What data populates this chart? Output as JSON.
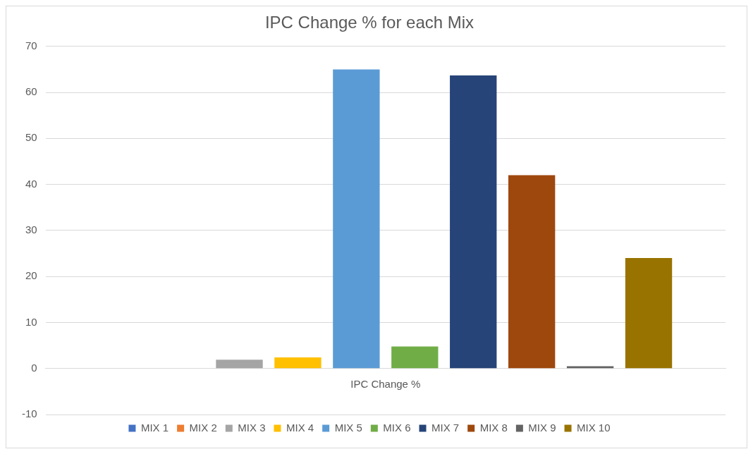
{
  "chart_data": {
    "type": "bar",
    "title": "IPC Change % for each Mix",
    "categories": [
      "IPC Change %"
    ],
    "series": [
      {
        "name": "MIX 1",
        "color": "#4472c4",
        "values": [
          0
        ]
      },
      {
        "name": "MIX 2",
        "color": "#ed7d31",
        "values": [
          0
        ]
      },
      {
        "name": "MIX 3",
        "color": "#a5a5a5",
        "values": [
          1.9
        ]
      },
      {
        "name": "MIX 4",
        "color": "#ffc000",
        "values": [
          2.4
        ]
      },
      {
        "name": "MIX 5",
        "color": "#5b9bd5",
        "values": [
          65
        ]
      },
      {
        "name": "MIX 6",
        "color": "#70ad47",
        "values": [
          4.8
        ]
      },
      {
        "name": "MIX 7",
        "color": "#264478",
        "values": [
          63.7
        ]
      },
      {
        "name": "MIX 8",
        "color": "#9e480e",
        "values": [
          42
        ]
      },
      {
        "name": "MIX 9",
        "color": "#636363",
        "values": [
          0.5
        ]
      },
      {
        "name": "MIX 10",
        "color": "#997300",
        "values": [
          24
        ]
      }
    ],
    "ylim": [
      -10,
      70
    ],
    "yticks": [
      -10,
      0,
      10,
      20,
      30,
      40,
      50,
      60,
      70
    ],
    "grid": "y",
    "legend": "bottom"
  }
}
